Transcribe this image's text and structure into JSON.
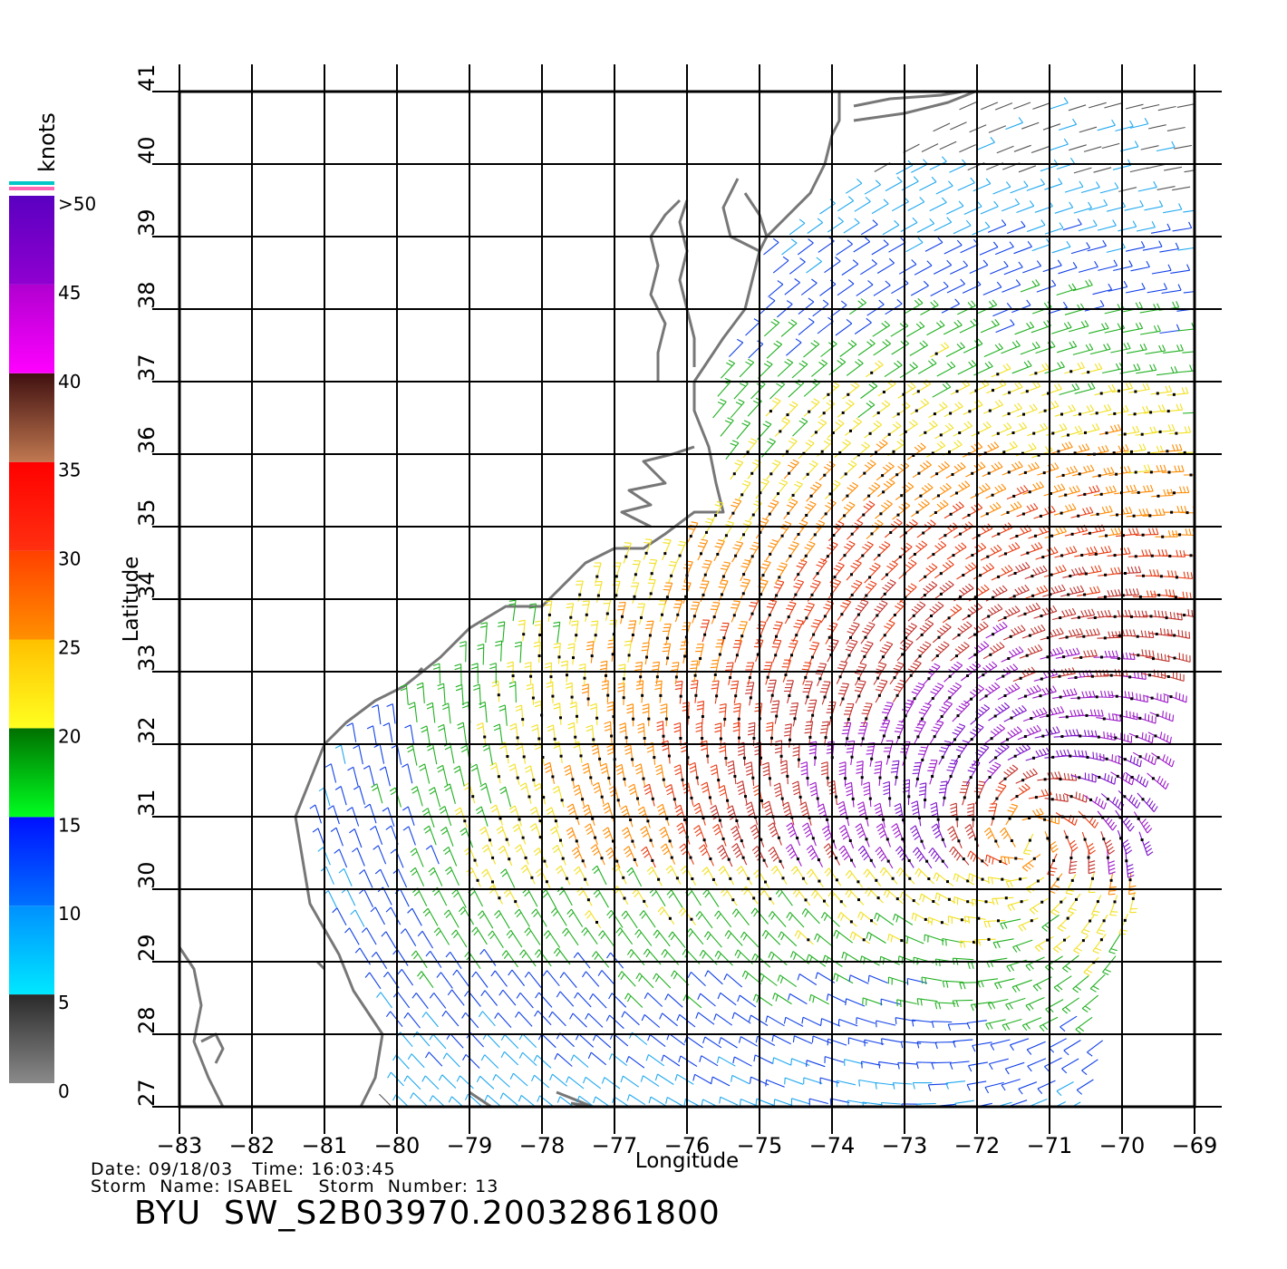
{
  "axes": {
    "xlabel": "Longitude",
    "ylabel": "Latitude",
    "lon_ticks": [
      "-83",
      "-82",
      "-81",
      "-80",
      "-79",
      "-78",
      "-77",
      "-76",
      "-75",
      "-74",
      "-73",
      "-72",
      "-71",
      "-70",
      "-69"
    ],
    "lat_ticks": [
      "27",
      "28",
      "29",
      "30",
      "31",
      "32",
      "33",
      "34",
      "35",
      "36",
      "37",
      "38",
      "39",
      "40",
      "41"
    ],
    "lon_range": [
      -83,
      -69
    ],
    "lat_range": [
      27,
      41
    ],
    "grid": true
  },
  "colorbar": {
    "unit": "knots",
    "labels": [
      {
        "text": "0",
        "value": 0
      },
      {
        "text": "5",
        "value": 5
      },
      {
        "text": "10",
        "value": 10
      },
      {
        "text": "15",
        "value": 15
      },
      {
        "text": "20",
        "value": 20
      },
      {
        "text": "25",
        "value": 25
      },
      {
        "text": "30",
        "value": 30
      },
      {
        "text": "35",
        "value": 35
      },
      {
        "text": "40",
        "value": 40
      },
      {
        "text": "45",
        "value": 45
      },
      {
        "text": ">50",
        "value": 50
      }
    ],
    "bands": [
      {
        "from": 0,
        "to": 5,
        "top": "#2a2a2a",
        "bottom": "#8a8a8a"
      },
      {
        "from": 5,
        "to": 10,
        "top": "#0090ff",
        "bottom": "#00e8ff"
      },
      {
        "from": 10,
        "to": 15,
        "top": "#0010ff",
        "bottom": "#0070ff"
      },
      {
        "from": 15,
        "to": 20,
        "top": "#007000",
        "bottom": "#00ff20"
      },
      {
        "from": 20,
        "to": 25,
        "top": "#ffc000",
        "bottom": "#ffff20"
      },
      {
        "from": 25,
        "to": 30,
        "top": "#ff4000",
        "bottom": "#ff9000"
      },
      {
        "from": 30,
        "to": 35,
        "top": "#ff0000",
        "bottom": "#ff3010"
      },
      {
        "from": 35,
        "to": 40,
        "top": "#401010",
        "bottom": "#c07850"
      },
      {
        "from": 40,
        "to": 45,
        "top": "#b000d0",
        "bottom": "#ff00ff"
      },
      {
        "from": 45,
        "to": 50,
        "top": "#5a00c0",
        "bottom": "#9000d0"
      }
    ],
    "cap_colors": [
      "#00c8c8",
      "#ff69b4"
    ]
  },
  "footer": {
    "date_line": "Date: 09/18/03   Time: 16:03:45",
    "storm_line": "Storm  Name: ISABEL    Storm  Number: 13",
    "product": "BYU  SW_S2B03970.20032861800"
  },
  "wind_field": {
    "storm_center": {
      "lon": -71.3,
      "lat": 30.7
    },
    "max_speed_knots": 50,
    "swath_edge_lon_at_lat": [
      [
        27,
        -70.5
      ],
      [
        30,
        -69.8
      ],
      [
        34,
        -69.0
      ],
      [
        41,
        -69.0
      ]
    ]
  },
  "styles": {
    "coast_color": "#777777",
    "grid_color": "#000000",
    "text_color": "#000000"
  }
}
